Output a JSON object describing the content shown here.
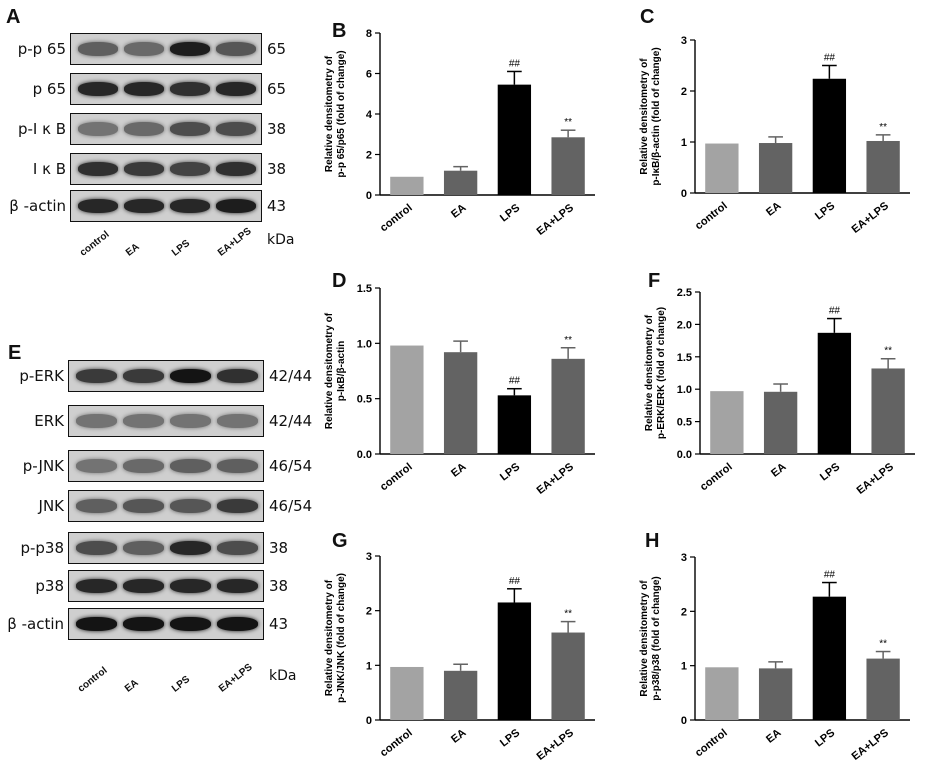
{
  "panels": {
    "A": "A",
    "B": "B",
    "C": "C",
    "D": "D",
    "E": "E",
    "F": "F",
    "G": "G",
    "H": "H"
  },
  "blot_A": {
    "rows": [
      {
        "label": "p-p 65",
        "size": "65",
        "intensity": [
          0.55,
          0.5,
          0.9,
          0.6
        ]
      },
      {
        "label": "p 65",
        "size": "65",
        "intensity": [
          0.85,
          0.85,
          0.8,
          0.85
        ]
      },
      {
        "label": "p-I κ B",
        "size": "38",
        "intensity": [
          0.45,
          0.5,
          0.65,
          0.65
        ]
      },
      {
        "label": "I κ B",
        "size": "38",
        "intensity": [
          0.8,
          0.75,
          0.7,
          0.8
        ]
      },
      {
        "label": "β -actin",
        "size": "43",
        "intensity": [
          0.85,
          0.85,
          0.85,
          0.9
        ]
      }
    ],
    "lanes": [
      "control",
      "EA",
      "LPS",
      "EA+LPS"
    ],
    "unit": "kDa"
  },
  "blot_E": {
    "rows": [
      {
        "label": "p-ERK",
        "size": "42/44",
        "intensity": [
          0.75,
          0.75,
          0.95,
          0.8
        ]
      },
      {
        "label": "ERK",
        "size": "42/44",
        "intensity": [
          0.45,
          0.45,
          0.45,
          0.45
        ]
      },
      {
        "label": "p-JNK",
        "size": "46/54",
        "intensity": [
          0.45,
          0.5,
          0.55,
          0.55
        ]
      },
      {
        "label": "JNK",
        "size": "46/54",
        "intensity": [
          0.55,
          0.6,
          0.6,
          0.75
        ]
      },
      {
        "label": "p-p38",
        "size": "38",
        "intensity": [
          0.65,
          0.55,
          0.85,
          0.65
        ]
      },
      {
        "label": "p38",
        "size": "38",
        "intensity": [
          0.85,
          0.85,
          0.85,
          0.85
        ]
      },
      {
        "label": "β -actin",
        "size": "43",
        "intensity": [
          0.95,
          0.95,
          0.95,
          0.95
        ]
      }
    ],
    "lanes": [
      "control",
      "EA",
      "LPS",
      "EA+LPS"
    ],
    "unit": "kDa"
  },
  "colors": {
    "control": "#a3a3a3",
    "EA": "#636363",
    "LPS": "#000000",
    "EA+LPS": "#636363"
  },
  "chart_data": [
    {
      "id": "B",
      "type": "bar",
      "categories": [
        "control",
        "EA",
        "LPS",
        "EA+LPS"
      ],
      "values": [
        0.9,
        1.2,
        5.45,
        2.85
      ],
      "errors": [
        0,
        0.2,
        0.65,
        0.35
      ],
      "annotations": [
        "",
        "",
        "##",
        "**"
      ],
      "ylabel_lines": [
        "Relative densitometry of",
        "p-p 65/p65 (fold of change)"
      ],
      "ylim": [
        0,
        8
      ],
      "yticks": [
        0,
        2,
        4,
        6,
        8
      ],
      "ytick_labels": [
        "0",
        "2",
        "4",
        "6",
        "8"
      ]
    },
    {
      "id": "C",
      "type": "bar",
      "categories": [
        "control",
        "EA",
        "LPS",
        "EA+LPS"
      ],
      "values": [
        0.97,
        0.98,
        2.24,
        1.02
      ],
      "errors": [
        0,
        0.12,
        0.26,
        0.12
      ],
      "annotations": [
        "",
        "",
        "##",
        "**"
      ],
      "ylabel_lines": [
        "Relative densitometry of",
        "p-IκB/β-actin (fold of change)"
      ],
      "ylim": [
        0,
        3
      ],
      "yticks": [
        0,
        1,
        2,
        3
      ],
      "ytick_labels": [
        "0",
        "1",
        "2",
        "3"
      ]
    },
    {
      "id": "D",
      "type": "bar",
      "categories": [
        "control",
        "EA",
        "LPS",
        "EA+LPS"
      ],
      "values": [
        0.98,
        0.92,
        0.53,
        0.86
      ],
      "errors": [
        0,
        0.1,
        0.06,
        0.1
      ],
      "annotations": [
        "",
        "",
        "##",
        "**"
      ],
      "ylabel_lines": [
        "Relative densitometry of",
        "p-IκB/β-actin"
      ],
      "ylim": [
        0,
        1.5
      ],
      "yticks": [
        0,
        0.5,
        1.0,
        1.5
      ],
      "ytick_labels": [
        "0.0",
        "0.5",
        "1.0",
        "1.5"
      ]
    },
    {
      "id": "F",
      "type": "bar",
      "categories": [
        "control",
        "EA",
        "LPS",
        "EA+LPS"
      ],
      "values": [
        0.97,
        0.96,
        1.87,
        1.32
      ],
      "errors": [
        0,
        0.12,
        0.22,
        0.15
      ],
      "annotations": [
        "",
        "",
        "##",
        "**"
      ],
      "ylabel_lines": [
        "Relative densitometry of",
        "p-ERK/ERK (fold of change)"
      ],
      "ylim": [
        0,
        2.5
      ],
      "yticks": [
        0,
        0.5,
        1.0,
        1.5,
        2.0,
        2.5
      ],
      "ytick_labels": [
        "0.0",
        "0.5",
        "1.0",
        "1.5",
        "2.0",
        "2.5"
      ]
    },
    {
      "id": "G",
      "type": "bar",
      "categories": [
        "control",
        "EA",
        "LPS",
        "EA+LPS"
      ],
      "values": [
        0.97,
        0.9,
        2.15,
        1.6
      ],
      "errors": [
        0,
        0.12,
        0.25,
        0.2
      ],
      "annotations": [
        "",
        "",
        "##",
        "**"
      ],
      "ylabel_lines": [
        "Relative densitometry of",
        "p-JNK/JNK (fold of change)"
      ],
      "ylim": [
        0,
        3
      ],
      "yticks": [
        0,
        1,
        2,
        3
      ],
      "ytick_labels": [
        "0",
        "1",
        "2",
        "3"
      ]
    },
    {
      "id": "H",
      "type": "bar",
      "categories": [
        "control",
        "EA",
        "LPS",
        "EA+LPS"
      ],
      "values": [
        0.97,
        0.95,
        2.27,
        1.13
      ],
      "errors": [
        0,
        0.12,
        0.26,
        0.13
      ],
      "annotations": [
        "",
        "",
        "##",
        "**"
      ],
      "ylabel_lines": [
        "Relative densitometry of",
        "p-p38/p38 (fold of change)"
      ],
      "ylim": [
        0,
        3
      ],
      "yticks": [
        0,
        1,
        2,
        3
      ],
      "ytick_labels": [
        "0",
        "1",
        "2",
        "3"
      ]
    }
  ]
}
